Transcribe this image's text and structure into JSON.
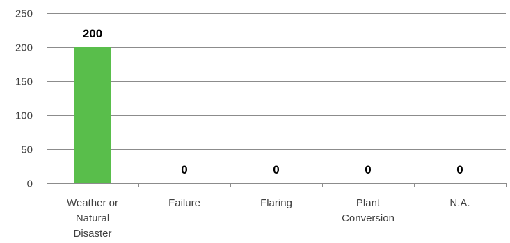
{
  "chart_data": {
    "type": "bar",
    "categories": [
      [
        "Weather or",
        "Natural",
        "Disaster"
      ],
      [
        "Failure"
      ],
      [
        "Flaring"
      ],
      [
        "Plant",
        "Conversion"
      ],
      [
        "N.A."
      ]
    ],
    "values": [
      200,
      0,
      0,
      0,
      0
    ],
    "data_labels": [
      "200",
      "0",
      "0",
      "0",
      "0"
    ],
    "title": "",
    "xlabel": "",
    "ylabel": "",
    "ylim": [
      0,
      250
    ],
    "yticks": [
      "0",
      "50",
      "100",
      "150",
      "200",
      "250"
    ],
    "grid": true,
    "legend": "none",
    "bar_color": "#59BE4B"
  }
}
